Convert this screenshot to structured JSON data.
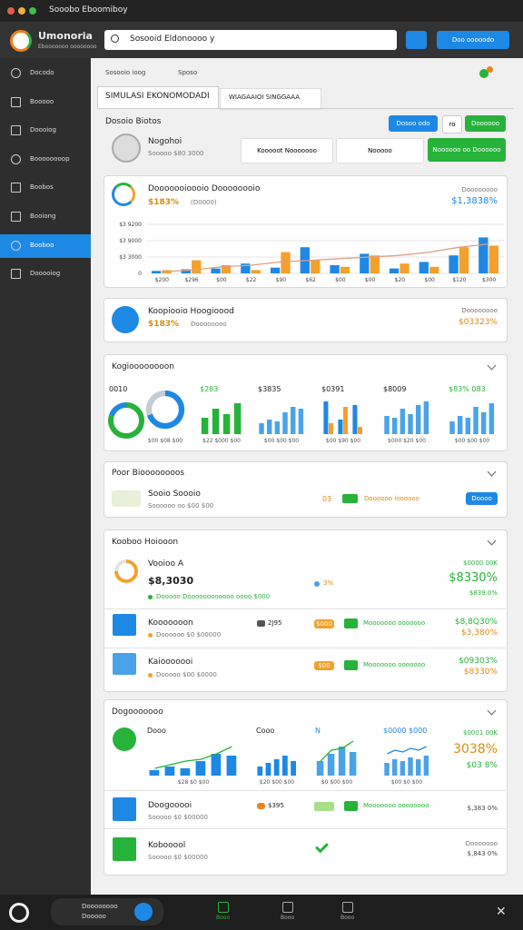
{
  "window": {
    "title": "Sooobo Eboomiboy"
  },
  "header": {
    "app_name": "Umonoria",
    "app_tagline": "Ebooooooo oooooooo",
    "search": "Sosooid Eldonoooo y",
    "action": "Doo ooooodo"
  },
  "sidebar": {
    "items": [
      "Docodo",
      "Booooo",
      "Doooiog",
      "Boooooooop",
      "Boobos",
      "Booiong",
      "Booboo",
      "Dooooiog"
    ],
    "active": 6
  },
  "breadcrumb": [
    "Sosooio ioog",
    "Sposo"
  ],
  "tabs": [
    "SIMULASI EKONOMODADI",
    "WIAGAAIOI SINGGAAA"
  ],
  "section": {
    "title": "Dosoio Biotos",
    "buttons": [
      "Dosoo odo",
      "ro",
      "Doooooo"
    ]
  },
  "profile": {
    "name": "Nogohoi",
    "detail": "Sooooo $80 3000",
    "pills": [
      "Kooooot Nooooooo",
      "Nooooo",
      "Noooooo oo Doooooo"
    ]
  },
  "main_card": {
    "title": "Dooooooioooio Doooooooio",
    "value": "$183%",
    "note": "(D0000)",
    "right_label": "Doooooooo",
    "right_value": "$1,3838%"
  },
  "main_chart": {
    "type": "bar",
    "ylim": [
      0,
      3000
    ],
    "yticks": [
      0,
      {
        "value": 1000,
        "label": "$3 3000"
      },
      {
        "value": 2000,
        "label": "$3 9000"
      },
      {
        "value": 3000,
        "label": "$3 9200"
      }
    ],
    "categories": [
      "$200",
      "$296",
      "$00",
      "$22",
      "$90",
      "$62",
      "$00",
      "$00",
      "$20",
      "$00",
      "$120",
      "$300"
    ],
    "series": [
      {
        "type": "bar",
        "color": "#1e88e5",
        "values": [
          150,
          250,
          300,
          600,
          350,
          1600,
          500,
          1200,
          300,
          700,
          1100,
          2200
        ]
      },
      {
        "type": "bar",
        "color": "#f4a02a",
        "values": [
          200,
          800,
          500,
          200,
          1300,
          800,
          400,
          1100,
          600,
          400,
          1600,
          1700
        ]
      },
      {
        "type": "line",
        "color": "#e0a080",
        "values": [
          100,
          200,
          400,
          500,
          700,
          800,
          900,
          1000,
          1100,
          1300,
          1600,
          1800
        ]
      }
    ]
  },
  "second_card": {
    "title": "Koopiooio Hoogioood",
    "value": "$183%",
    "note": "Doooooooo",
    "right_label": "Doooooooo",
    "right_value": "$03323%"
  },
  "overview": {
    "title": "Kogioooooooon",
    "charts": [
      {
        "type": "donut",
        "label": "0010",
        "label_color": "#222",
        "values": [
          80,
          20
        ],
        "colors": [
          "#27b23a",
          "#1e88e5"
        ]
      },
      {
        "type": "donut",
        "caption": "$00 $08 $00",
        "values": [
          70,
          30
        ],
        "colors": [
          "#1e88e5",
          "#c4ccd4"
        ]
      },
      {
        "type": "bar",
        "label": "$283",
        "label_color": "#27b23a",
        "caption": "$22 $000 $00",
        "ylim": [
          0,
          100
        ],
        "series": [
          {
            "type": "bar",
            "color": "#27b23a",
            "values": [
              45,
              70,
              55,
              85
            ]
          }
        ]
      },
      {
        "type": "bar",
        "label": "$3835",
        "label_color": "#222",
        "caption": "$00 $00 $00",
        "ylim": [
          0,
          100
        ],
        "series": [
          {
            "type": "bar",
            "color": "#4aa3e8",
            "values": [
              30,
              40,
              35,
              60,
              75,
              70
            ]
          }
        ]
      },
      {
        "type": "bar",
        "label": "$0391",
        "label_color": "#222",
        "caption": "$00 $90 $00",
        "ylim": [
          0,
          100
        ],
        "series": [
          {
            "type": "bar",
            "color": "#1e88e5",
            "values": [
              90,
              40,
              80
            ]
          },
          {
            "type": "bar",
            "color": "#f4a02a",
            "values": [
              30,
              75,
              20
            ]
          }
        ]
      },
      {
        "type": "bar",
        "label": "$8009",
        "label_color": "#222",
        "caption": "$000 $20 $00",
        "ylim": [
          0,
          100
        ],
        "series": [
          {
            "type": "bar",
            "color": "#4aa3e8",
            "values": [
              50,
              45,
              70,
              55,
              80,
              90
            ]
          }
        ]
      },
      {
        "type": "bar",
        "label": "$83% 083",
        "label_color": "#27b23a",
        "caption": "$00 $00 $00",
        "ylim": [
          0,
          100
        ],
        "series": [
          {
            "type": "bar",
            "color": "#4aa3e8",
            "values": [
              35,
              50,
              45,
              75,
              60,
              85
            ]
          }
        ]
      }
    ]
  },
  "pool": {
    "title": "Poor Bioooooooos",
    "name": "Sooio Soooio",
    "detail": "Soooooo oo $00 $00",
    "value": "03",
    "badge": "Doooooo ioooooo",
    "button": "Doooo"
  },
  "holdings": {
    "title": "Kooboo Hoiooon",
    "rows": [
      {
        "name": "Vooioo A",
        "value": "$8,3030",
        "detail": "Dooooo Doooooooooooo oooo $000",
        "mid": "3%",
        "right_top": "$0000 00K",
        "right_value": "$8330%",
        "right_bottom": "$839.0%",
        "progress": {
          "type": "donut",
          "values": [
            75,
            25
          ],
          "colors": [
            "#f4a02a",
            "#e2e2e2"
          ]
        }
      },
      {
        "name": "Kooooooon",
        "detail": "Doooooo $0 $00000",
        "mid": "2J95",
        "tag": "$000",
        "badge": "Mooooooo ooooooo",
        "right_top": "$8,8Q30%",
        "right_bottom": "$3,380%"
      },
      {
        "name": "Kaiooooooi",
        "detail": "Dooooo $00 $0000",
        "tag": "$00",
        "badge": "Mooooooo ooooooo",
        "right_top": "$09303%",
        "right_bottom": "$8330%"
      }
    ]
  },
  "growth": {
    "title": "Dogooooooo",
    "right_top": "$0001 00K",
    "right_value": "3038%",
    "right_bottom": "$03 8%",
    "charts": [
      {
        "type": "bar",
        "label": "Dooo",
        "label_color": "#222",
        "caption": "$28 $0 $00",
        "ylim": [
          0,
          100
        ],
        "series": [
          {
            "type": "bar",
            "color": "#1e88e5",
            "values": [
              15,
              25,
              20,
              40,
              60,
              55
            ]
          },
          {
            "type": "line",
            "color": "#27b23a",
            "values": [
              20,
              30,
              40,
              45,
              60,
              80
            ]
          }
        ]
      },
      {
        "type": "bar",
        "label": "Cooo",
        "label_color": "#222",
        "caption": "$20 $00 $00",
        "ylim": [
          0,
          100
        ],
        "series": [
          {
            "type": "bar",
            "color": "#1e88e5",
            "values": [
              25,
              35,
              45,
              55,
              40
            ]
          }
        ]
      },
      {
        "type": "bar",
        "label": "N",
        "label_color": "#1e88e5",
        "caption": "$0 $00 $00",
        "ylim": [
          0,
          100
        ],
        "series": [
          {
            "type": "bar",
            "color": "#4aa3e8",
            "values": [
              40,
              60,
              80,
              65
            ]
          },
          {
            "type": "line",
            "color": "#27b23a",
            "values": [
              40,
              70,
              75,
              95
            ]
          }
        ]
      },
      {
        "type": "bar",
        "label": "$0000 $000",
        "label_color": "#1e88e5",
        "caption": "$00 $0 $00",
        "ylim": [
          0,
          100
        ],
        "series": [
          {
            "type": "bar",
            "color": "#4aa3e8",
            "values": [
              35,
              45,
              40,
              50,
              45,
              55
            ]
          },
          {
            "type": "line",
            "color": "#1e88e5",
            "values": [
              60,
              70,
              65,
              75,
              70,
              80
            ]
          }
        ]
      }
    ],
    "rows": [
      {
        "name": "Doogooooi",
        "detail": "Sooooo $0 $00000",
        "tag": "$395",
        "badge": "Mooooooo oooooooo",
        "right_top": "$,383 0%"
      },
      {
        "name": "Kobooool",
        "detail": "Sooooo $0 $00000",
        "right_top": "Dooooooo",
        "right_bottom": "$,843 0%"
      }
    ]
  },
  "footer": {
    "user": "Doooooooo",
    "user_detail": "Dooooo",
    "nav": [
      "Booo",
      "Booo",
      "Booo"
    ]
  }
}
